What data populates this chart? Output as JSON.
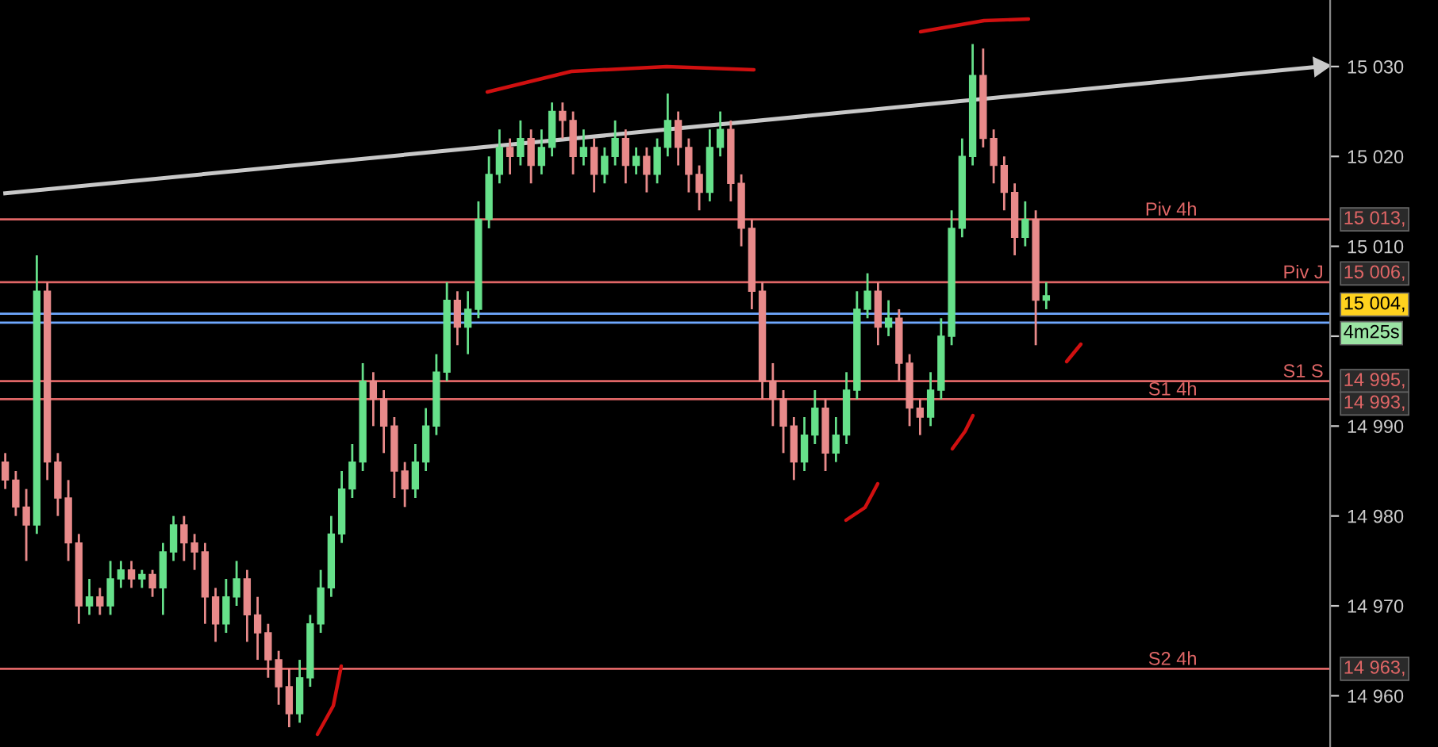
{
  "chart_data": {
    "type": "candlestick",
    "categories": [
      null,
      null,
      null,
      null,
      null,
      null,
      null,
      null,
      null,
      null,
      null,
      null,
      null,
      null,
      null,
      null,
      null,
      null,
      null,
      null,
      null,
      null,
      null,
      null,
      null,
      null,
      null,
      null,
      null,
      null,
      null,
      null,
      null,
      null,
      null,
      null,
      null,
      null,
      null,
      null,
      null,
      null,
      null,
      null,
      null,
      null,
      null,
      null,
      null,
      null,
      null,
      null,
      null,
      null,
      null,
      null,
      null,
      null,
      null,
      null,
      null,
      null,
      null,
      null,
      null,
      null,
      null,
      null,
      null,
      null,
      null,
      null,
      null,
      null,
      null,
      null,
      null,
      null,
      null,
      null,
      null,
      null,
      null,
      null,
      null,
      null,
      null,
      null,
      null,
      null,
      null,
      null,
      null,
      null,
      null,
      null,
      null,
      null,
      null,
      null,
      null,
      null,
      null,
      null,
      null,
      null,
      null,
      null,
      null,
      null,
      null,
      null,
      null,
      null,
      null,
      null,
      null,
      null,
      null,
      null,
      null,
      null,
      null,
      null,
      null,
      null
    ],
    "ohlc": [
      [
        14986,
        14987,
        14983,
        14984
      ],
      [
        14984,
        14985,
        14980,
        14981
      ],
      [
        14981,
        14983,
        14975,
        14979
      ],
      [
        14979,
        15009,
        14978,
        15005
      ],
      [
        15005,
        15006,
        14984,
        14986
      ],
      [
        14986,
        14987,
        14980,
        14982
      ],
      [
        14982,
        14984,
        14975,
        14977
      ],
      [
        14977,
        14978,
        14968,
        14970
      ],
      [
        14970,
        14973,
        14969,
        14971
      ],
      [
        14971,
        14972,
        14969,
        14970
      ],
      [
        14970,
        14975,
        14969,
        14973
      ],
      [
        14973,
        14975,
        14972,
        14974
      ],
      [
        14974,
        14975,
        14972,
        14973
      ],
      [
        14973,
        14974,
        14972,
        14973.5
      ],
      [
        14973.5,
        14974,
        14971,
        14972
      ],
      [
        14972,
        14977,
        14969,
        14976
      ],
      [
        14976,
        14980,
        14975,
        14979
      ],
      [
        14979,
        14980,
        14975,
        14977
      ],
      [
        14977,
        14978,
        14974,
        14976
      ],
      [
        14976,
        14977,
        14968,
        14971
      ],
      [
        14971,
        14972,
        14966,
        14968
      ],
      [
        14968,
        14973,
        14967,
        14971
      ],
      [
        14971,
        14975,
        14970,
        14973
      ],
      [
        14973,
        14974,
        14966,
        14969
      ],
      [
        14969,
        14971,
        14964,
        14967
      ],
      [
        14967,
        14968,
        14962,
        14964
      ],
      [
        14964,
        14965,
        14959,
        14961
      ],
      [
        14961,
        14963,
        14956.5,
        14958
      ],
      [
        14958,
        14964,
        14957,
        14962
      ],
      [
        14962,
        14969,
        14961,
        14968
      ],
      [
        14968,
        14974,
        14967,
        14972
      ],
      [
        14972,
        14980,
        14971,
        14978
      ],
      [
        14978,
        14985,
        14977,
        14983
      ],
      [
        14983,
        14988,
        14982,
        14986
      ],
      [
        14986,
        14997,
        14985,
        14995
      ],
      [
        14995,
        14996,
        14990,
        14993
      ],
      [
        14993,
        14994,
        14987,
        14990
      ],
      [
        14990,
        14991,
        14982,
        14985
      ],
      [
        14985,
        14986,
        14981,
        14983
      ],
      [
        14983,
        14988,
        14982,
        14986
      ],
      [
        14986,
        14992,
        14985,
        14990
      ],
      [
        14990,
        14998,
        14989,
        14996
      ],
      [
        14996,
        15006,
        14995,
        15004
      ],
      [
        15004,
        15005,
        14999,
        15001
      ],
      [
        15001,
        15005,
        14998,
        15003
      ],
      [
        15003,
        15015,
        15002,
        15013
      ],
      [
        15013,
        15020,
        15012,
        15018
      ],
      [
        15018,
        15023,
        15017,
        15021
      ],
      [
        15021,
        15022,
        15018,
        15020
      ],
      [
        15020,
        15024,
        15019,
        15022
      ],
      [
        15022,
        15023,
        15017,
        15019
      ],
      [
        15019,
        15023,
        15018,
        15021
      ],
      [
        15021,
        15026,
        15020,
        15025
      ],
      [
        15025,
        15026,
        15022,
        15024
      ],
      [
        15024,
        15025,
        15018,
        15020
      ],
      [
        15020,
        15023,
        15019,
        15021
      ],
      [
        15021,
        15022,
        15016,
        15018
      ],
      [
        15018,
        15021,
        15017,
        15020
      ],
      [
        15020,
        15024,
        15019,
        15022
      ],
      [
        15022,
        15023,
        15017,
        15019
      ],
      [
        15019,
        15021,
        15018,
        15020
      ],
      [
        15020,
        15021,
        15016,
        15018
      ],
      [
        15018,
        15022,
        15017,
        15021
      ],
      [
        15021,
        15027,
        15020,
        15024
      ],
      [
        15024,
        15025,
        15019,
        15021
      ],
      [
        15021,
        15022,
        15016,
        15018
      ],
      [
        15018,
        15019,
        15014,
        15016
      ],
      [
        15016,
        15023,
        15015,
        15021
      ],
      [
        15021,
        15025,
        15020,
        15023
      ],
      [
        15023,
        15024,
        15015,
        15017
      ],
      [
        15017,
        15018,
        15010,
        15012
      ],
      [
        15012,
        15013,
        15003,
        15005
      ],
      [
        15005,
        15006,
        14993,
        14995
      ],
      [
        14995,
        14997,
        14990,
        14993
      ],
      [
        14993,
        14994,
        14987,
        14990
      ],
      [
        14990,
        14991,
        14984,
        14986
      ],
      [
        14986,
        14991,
        14985,
        14989
      ],
      [
        14989,
        14994,
        14988,
        14992
      ],
      [
        14992,
        14993,
        14985,
        14987
      ],
      [
        14987,
        14991,
        14986,
        14989
      ],
      [
        14989,
        14996,
        14988,
        14994
      ],
      [
        14994,
        15005,
        14993,
        15003
      ],
      [
        15003,
        15007,
        15002,
        15005
      ],
      [
        15005,
        15006,
        14999,
        15001
      ],
      [
        15001,
        15004,
        15000,
        15002
      ],
      [
        15002,
        15003,
        14995,
        14997
      ],
      [
        14997,
        14998,
        14990,
        14992
      ],
      [
        14992,
        14993,
        14989,
        14991
      ],
      [
        14991,
        14996,
        14990,
        14994
      ],
      [
        14994,
        15002,
        14993,
        15000
      ],
      [
        15000,
        15014,
        14999,
        15012
      ],
      [
        15012,
        15022,
        15011,
        15020
      ],
      [
        15020,
        15032.5,
        15019,
        15029
      ],
      [
        15029,
        15032,
        15021,
        15022
      ],
      [
        15022,
        15023,
        15017,
        15019
      ],
      [
        15019,
        15020,
        15014,
        15016
      ],
      [
        15016,
        15017,
        15009,
        15011
      ],
      [
        15011,
        15015,
        15010,
        15013
      ],
      [
        15013,
        15014,
        14999,
        15004
      ],
      [
        15004,
        15006,
        15003,
        15004.5
      ],
      null,
      null,
      null,
      null,
      null,
      null,
      null,
      null,
      null,
      null,
      null,
      null,
      null,
      null,
      null,
      null,
      null,
      null,
      null,
      null,
      null,
      null,
      null,
      null,
      null,
      null
    ],
    "colors": [
      "#e88a8a",
      "#e88a8a",
      "#e88a8a",
      "#66e08a",
      "#e88a8a",
      "#e88a8a",
      "#e88a8a",
      "#e88a8a",
      "#66e08a",
      "#e88a8a",
      "#66e08a",
      "#66e08a",
      "#e88a8a",
      "#66e08a",
      "#e88a8a",
      "#66e08a",
      "#66e08a",
      "#e88a8a",
      "#e88a8a",
      "#e88a8a",
      "#e88a8a",
      "#66e08a",
      "#66e08a",
      "#e88a8a",
      "#e88a8a",
      "#e88a8a",
      "#e88a8a",
      "#e88a8a",
      "#66e08a",
      "#66e08a",
      "#66e08a",
      "#66e08a",
      "#66e08a",
      "#66e08a",
      "#66e08a",
      "#e88a8a",
      "#e88a8a",
      "#e88a8a",
      "#e88a8a",
      "#66e08a",
      "#66e08a",
      "#66e08a",
      "#66e08a",
      "#e88a8a",
      "#66e08a",
      "#66e08a",
      "#66e08a",
      "#66e08a",
      "#e88a8a",
      "#66e08a",
      "#e88a8a",
      "#66e08a",
      "#66e08a",
      "#e88a8a",
      "#e88a8a",
      "#66e08a",
      "#e88a8a",
      "#66e08a",
      "#66e08a",
      "#e88a8a",
      "#66e08a",
      "#e88a8a",
      "#66e08a",
      "#66e08a",
      "#e88a8a",
      "#e88a8a",
      "#e88a8a",
      "#66e08a",
      "#66e08a",
      "#e88a8a",
      "#e88a8a",
      "#e88a8a",
      "#e88a8a",
      "#e88a8a",
      "#e88a8a",
      "#e88a8a",
      "#66e08a",
      "#66e08a",
      "#e88a8a",
      "#66e08a",
      "#66e08a",
      "#66e08a",
      "#66e08a",
      "#e88a8a",
      "#66e08a",
      "#e88a8a",
      "#e88a8a",
      "#e88a8a",
      "#66e08a",
      "#66e08a",
      "#66e08a",
      "#66e08a",
      "#66e08a",
      "#e88a8a",
      "#e88a8a",
      "#e88a8a",
      "#e88a8a",
      "#66e08a",
      "#e88a8a",
      "#66e08a",
      null,
      null,
      null,
      null,
      null,
      null,
      null,
      null,
      null,
      null,
      null,
      null,
      null,
      null,
      null,
      null,
      null,
      null,
      null,
      null,
      null,
      null,
      null,
      null,
      null,
      null
    ],
    "series": [
      {
        "type": "line",
        "color": "#c8c8c8",
        "values": [
          15015.9,
          null,
          null,
          null,
          null,
          null,
          null,
          null,
          null,
          null,
          null,
          null,
          null,
          null,
          null,
          null,
          null,
          null,
          null,
          null,
          null,
          null,
          null,
          null,
          null,
          null,
          null,
          null,
          null,
          null,
          null,
          null,
          null,
          null,
          null,
          null,
          null,
          null,
          null,
          null,
          null,
          null,
          null,
          null,
          null,
          null,
          null,
          null,
          null,
          null,
          null,
          null,
          null,
          null,
          null,
          null,
          null,
          null,
          null,
          null,
          null,
          null,
          null,
          null,
          null,
          null,
          null,
          null,
          null,
          null,
          null,
          null,
          null,
          null,
          null,
          null,
          null,
          null,
          null,
          null,
          null,
          null,
          null,
          null,
          null,
          null,
          null,
          null,
          null,
          null,
          null,
          null,
          null,
          null,
          null,
          null,
          null,
          null,
          null,
          null,
          null,
          null,
          null,
          null,
          null,
          null,
          null,
          null,
          null,
          null,
          null,
          null,
          null,
          null,
          null,
          null,
          null,
          null,
          null,
          null,
          null,
          null,
          null,
          null,
          null,
          15030
        ]
      }
    ],
    "ylim": [
      14954.3,
      15037.4
    ],
    "yticks": [
      {
        "value": 14960,
        "label": "14 960"
      },
      {
        "value": 14970,
        "label": "14 970"
      },
      {
        "value": 14980,
        "label": "14 980"
      },
      {
        "value": 14990,
        "label": "14 990"
      },
      {
        "value": 15000,
        "label": null
      },
      {
        "value": 15010,
        "label": "15 010"
      },
      {
        "value": 15020,
        "label": "15 020"
      },
      {
        "value": 15030,
        "label": "15 030"
      }
    ],
    "ref_lines": [
      {
        "axis": "y",
        "value": 15013,
        "label": "Piv 4h",
        "color": "#e06666"
      },
      {
        "axis": "y",
        "value": 15006,
        "label": "Piv J",
        "color": "#e06666"
      },
      {
        "axis": "y",
        "value": 14995,
        "label": "S1 S",
        "color": "#e06666"
      },
      {
        "axis": "y",
        "value": 14993,
        "label": "S1 4h",
        "color": "#e06666"
      },
      {
        "axis": "y",
        "value": 14963,
        "label": "S2 4h",
        "color": "#e06666"
      },
      {
        "axis": "y",
        "value": 15002.5,
        "color": "#6fa8ff"
      },
      {
        "axis": "y",
        "value": 15001.5,
        "color": "#6fa8ff"
      }
    ],
    "annotations": [
      "15 013,",
      "15 006,",
      "15 004,",
      "4m25s",
      "14 995,",
      "14 993,",
      "14 963,"
    ],
    "tick_labels": "y",
    "grid": false
  }
}
